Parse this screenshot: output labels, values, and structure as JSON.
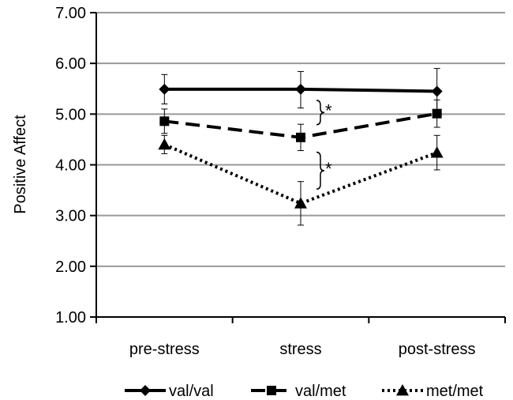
{
  "chart_data": {
    "type": "line",
    "categories": [
      "pre-stress",
      "stress",
      "post-stress"
    ],
    "ylabel": "Positive Affect",
    "xlabel": "",
    "ylim": [
      1.0,
      7.0
    ],
    "yticks": [
      "1.00",
      "2.00",
      "3.00",
      "4.00",
      "5.00",
      "6.00",
      "7.00"
    ],
    "grid": true,
    "legend_position": "bottom",
    "series": [
      {
        "name": "val/val",
        "values": [
          5.49,
          5.49,
          5.45
        ],
        "err_low": [
          5.2,
          5.12,
          5.0
        ],
        "err_high": [
          5.78,
          5.84,
          5.9
        ],
        "line_style": "solid",
        "marker": "diamond"
      },
      {
        "name": "val/met",
        "values": [
          4.86,
          4.54,
          5.01
        ],
        "err_low": [
          4.62,
          4.28,
          4.74
        ],
        "err_high": [
          5.1,
          4.8,
          5.28
        ],
        "line_style": "dashed",
        "marker": "square"
      },
      {
        "name": "met/met",
        "values": [
          4.4,
          3.24,
          4.24
        ],
        "err_low": [
          4.22,
          2.81,
          3.9
        ],
        "err_high": [
          4.58,
          3.67,
          4.58
        ],
        "line_style": "dotted",
        "marker": "triangle"
      }
    ],
    "annotations": [
      {
        "text": "*",
        "between": [
          5.27,
          4.79
        ]
      },
      {
        "text": "*",
        "between": [
          4.25,
          3.52
        ]
      }
    ],
    "colors": {
      "line": "#000000",
      "grid": "#999999"
    }
  }
}
